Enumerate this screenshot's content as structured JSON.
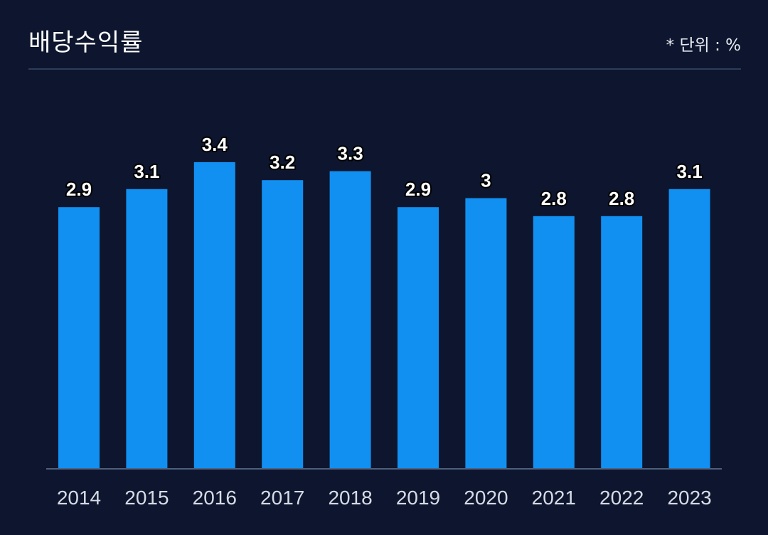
{
  "header": {
    "title": "배당수익률",
    "unit_note": "* 단위 : %"
  },
  "colors": {
    "background": "#0d162e",
    "bar": "#1190f2",
    "divider": "#2d3c58"
  },
  "chart_data": {
    "type": "bar",
    "title": "배당수익률",
    "xlabel": "",
    "ylabel": "",
    "unit": "%",
    "categories": [
      "2014",
      "2015",
      "2016",
      "2017",
      "2018",
      "2019",
      "2020",
      "2021",
      "2022",
      "2023"
    ],
    "values": [
      2.9,
      3.1,
      3.4,
      3.2,
      3.3,
      2.9,
      3,
      2.8,
      2.8,
      3.1
    ],
    "data_labels": [
      "2.9",
      "3.1",
      "3.4",
      "3.2",
      "3.3",
      "2.9",
      "3",
      "2.8",
      "2.8",
      "3.1"
    ],
    "ylim": [
      0,
      3.4
    ],
    "grid": false,
    "legend": "none"
  }
}
